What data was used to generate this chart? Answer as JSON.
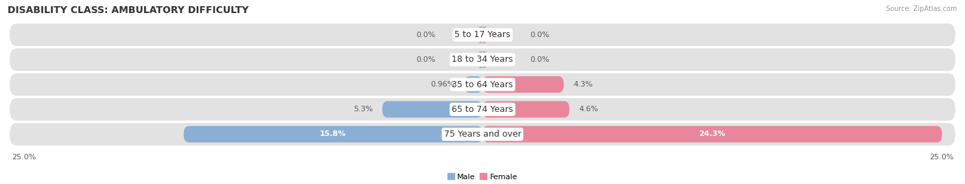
{
  "title": "DISABILITY CLASS: AMBULATORY DIFFICULTY",
  "source": "Source: ZipAtlas.com",
  "categories": [
    "5 to 17 Years",
    "18 to 34 Years",
    "35 to 64 Years",
    "65 to 74 Years",
    "75 Years and over"
  ],
  "male_values": [
    0.0,
    0.0,
    0.96,
    5.3,
    15.8
  ],
  "female_values": [
    0.0,
    0.0,
    4.3,
    4.6,
    24.3
  ],
  "male_labels": [
    "0.0%",
    "0.0%",
    "0.96%",
    "5.3%",
    "15.8%"
  ],
  "female_labels": [
    "0.0%",
    "0.0%",
    "4.3%",
    "4.6%",
    "24.3%"
  ],
  "male_color": "#8aaed4",
  "female_color": "#e8879c",
  "male_label_inside": [
    false,
    false,
    false,
    false,
    true
  ],
  "female_label_inside": [
    false,
    false,
    false,
    false,
    true
  ],
  "x_max": 25.0,
  "axis_label_left": "25.0%",
  "axis_label_right": "25.0%",
  "bar_bg_color": "#e2e2e2",
  "bar_height": 0.55,
  "title_fontsize": 10,
  "label_fontsize": 8,
  "category_fontsize": 9,
  "legend_male": "Male",
  "legend_female": "Female"
}
